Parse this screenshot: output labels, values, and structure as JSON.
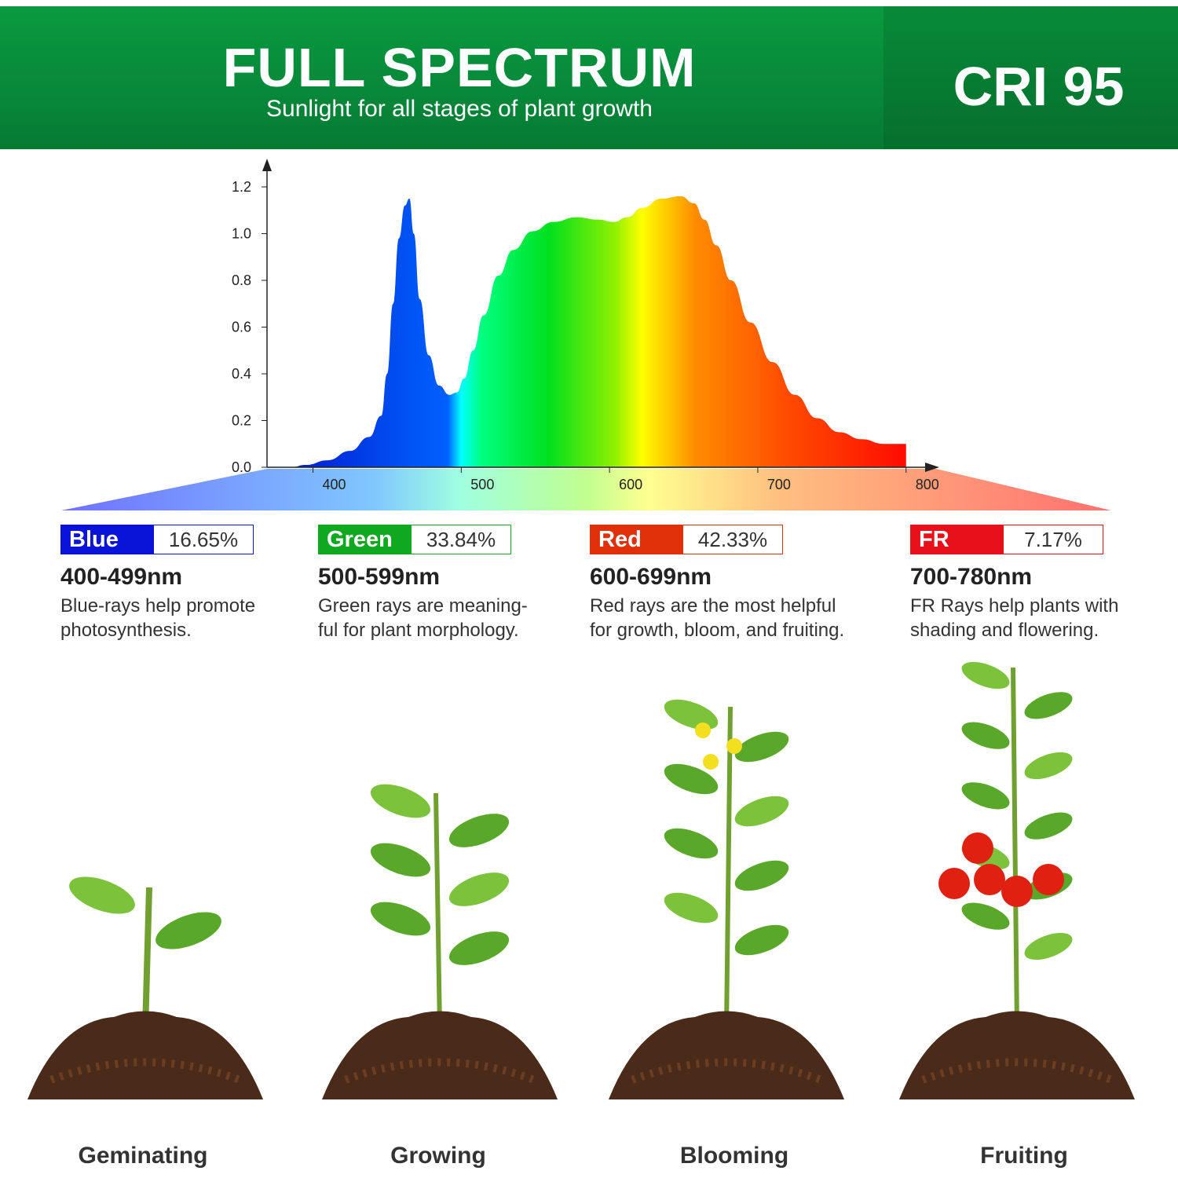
{
  "header": {
    "title": "FULL SPECTRUM",
    "subtitle": "Sunlight for all stages of plant growth",
    "badge": "CRI 95"
  },
  "chart_data": {
    "type": "area",
    "xlabel": "",
    "ylabel": "",
    "x_ticks": [
      "400",
      "500",
      "600",
      "700",
      "800"
    ],
    "y_ticks": [
      "0.0",
      "0.2",
      "0.4",
      "0.6",
      "0.8",
      "1.0",
      "1.2"
    ],
    "xlim": [
      369,
      820
    ],
    "ylim": [
      0,
      1.25
    ],
    "x": [
      385,
      395,
      410,
      425,
      438,
      446,
      450,
      454,
      458,
      462,
      465,
      468,
      472,
      478,
      485,
      492,
      497,
      502,
      508,
      515,
      525,
      535,
      548,
      562,
      578,
      592,
      603,
      612,
      622,
      635,
      648,
      657,
      664,
      672,
      682,
      695,
      710,
      725,
      740,
      755,
      770,
      785,
      800
    ],
    "y": [
      0,
      0.01,
      0.03,
      0.07,
      0.13,
      0.22,
      0.4,
      0.7,
      0.98,
      1.12,
      1.15,
      1.0,
      0.72,
      0.48,
      0.35,
      0.31,
      0.32,
      0.38,
      0.5,
      0.65,
      0.82,
      0.93,
      1.01,
      1.05,
      1.07,
      1.06,
      1.05,
      1.07,
      1.11,
      1.15,
      1.16,
      1.13,
      1.06,
      0.95,
      0.8,
      0.62,
      0.45,
      0.31,
      0.21,
      0.15,
      0.12,
      0.1,
      0.1
    ],
    "grid": false
  },
  "bands": [
    {
      "name": "Blue",
      "percent": "16.65%",
      "range": "400-499nm",
      "desc": [
        "Blue-rays help promote",
        "photosynthesis."
      ],
      "color": "#0a14d8"
    },
    {
      "name": "Green",
      "percent": "33.84%",
      "range": "500-599nm",
      "desc": [
        "Green rays are meaning-",
        "ful for plant morphology."
      ],
      "color": "#10a820"
    },
    {
      "name": "Red",
      "percent": "42.33%",
      "range": "600-699nm",
      "desc": [
        "Red rays are the most helpful",
        "for growth, bloom, and fruiting."
      ],
      "color": "#e0300a"
    },
    {
      "name": "FR",
      "percent": "7.17%",
      "range": "700-780nm",
      "desc": [
        "FR Rays help plants with",
        "shading and flowering."
      ],
      "color": "#e8101a"
    }
  ],
  "stages": [
    "Geminating",
    "Growing",
    "Blooming",
    "Fruiting"
  ]
}
